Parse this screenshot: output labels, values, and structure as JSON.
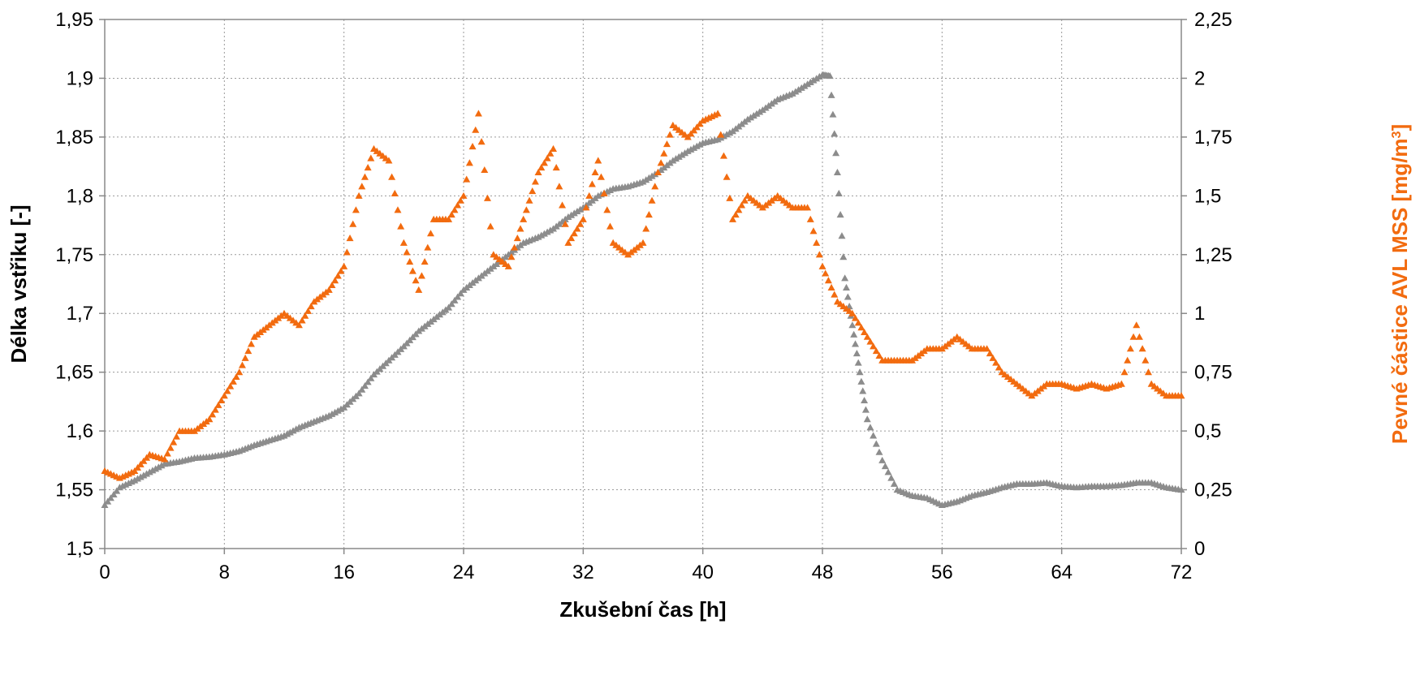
{
  "chart_data": {
    "type": "scatter",
    "xlabel": "Zkušební čas [h]",
    "ylabel_left": "Délka vstřiku [-]",
    "ylabel_right_main": "Pevné částice AVL MSS [mg/m",
    "ylabel_right_sup": "3",
    "ylabel_right_end": "]",
    "xlim": [
      0,
      72
    ],
    "ylim_left": [
      1.5,
      1.95
    ],
    "ylim_right": [
      0,
      2.25
    ],
    "x_ticks": [
      0,
      8,
      16,
      24,
      32,
      40,
      48,
      56,
      64,
      72
    ],
    "x_tick_labels": [
      "0",
      "8",
      "16",
      "24",
      "32",
      "40",
      "48",
      "56",
      "64",
      "72"
    ],
    "y_left_ticks": [
      1.5,
      1.55,
      1.6,
      1.65,
      1.7,
      1.75,
      1.8,
      1.85,
      1.9,
      1.95
    ],
    "y_left_tick_labels": [
      "1,5",
      "1,55",
      "1,6",
      "1,65",
      "1,7",
      "1,75",
      "1,8",
      "1,85",
      "1,9",
      "1,95"
    ],
    "y_right_ticks": [
      0,
      0.25,
      0.5,
      0.75,
      1,
      1.25,
      1.5,
      1.75,
      2,
      2.25
    ],
    "y_right_tick_labels": [
      "0",
      "0,25",
      "0,5",
      "0,75",
      "1",
      "1,25",
      "1,5",
      "1,75",
      "2",
      "2,25"
    ],
    "grid": true,
    "colors": {
      "gray": "#8C8C8C",
      "orange": "#F26B0F"
    },
    "series": [
      {
        "axis": "left",
        "color": "#8C8C8C",
        "marker": "triangle",
        "x": [
          0,
          1,
          2,
          3,
          4,
          5,
          6,
          7,
          8,
          9,
          10,
          11,
          12,
          13,
          14,
          15,
          16,
          17,
          18,
          19,
          20,
          21,
          22,
          23,
          24,
          25,
          26,
          27,
          28,
          29,
          30,
          31,
          32,
          33,
          34,
          35,
          36,
          37,
          38,
          39,
          40,
          41,
          42,
          43,
          44,
          45,
          46,
          47,
          48,
          48.5,
          49,
          49.5,
          50,
          50.5,
          51,
          52,
          53,
          54,
          55,
          56,
          57,
          58,
          59,
          60,
          61,
          62,
          63,
          64,
          65,
          66,
          67,
          68,
          69,
          70,
          71,
          72
        ],
        "y": [
          1.537,
          1.552,
          1.558,
          1.565,
          1.572,
          1.574,
          1.577,
          1.578,
          1.58,
          1.583,
          1.588,
          1.592,
          1.596,
          1.603,
          1.608,
          1.613,
          1.62,
          1.632,
          1.648,
          1.66,
          1.672,
          1.685,
          1.695,
          1.705,
          1.72,
          1.73,
          1.74,
          1.75,
          1.76,
          1.765,
          1.772,
          1.782,
          1.79,
          1.8,
          1.806,
          1.808,
          1.812,
          1.82,
          1.83,
          1.838,
          1.845,
          1.848,
          1.855,
          1.865,
          1.873,
          1.882,
          1.887,
          1.895,
          1.903,
          1.902,
          1.82,
          1.73,
          1.69,
          1.65,
          1.61,
          1.575,
          1.55,
          1.545,
          1.543,
          1.537,
          1.54,
          1.545,
          1.548,
          1.552,
          1.555,
          1.555,
          1.556,
          1.553,
          1.552,
          1.553,
          1.553,
          1.554,
          1.556,
          1.556,
          1.552,
          1.55
        ]
      },
      {
        "axis": "right",
        "color": "#F26B0F",
        "marker": "triangle",
        "x": [
          0,
          1,
          2,
          3,
          4,
          5,
          6,
          7,
          8,
          9,
          10,
          11,
          12,
          13,
          14,
          15,
          16,
          17,
          18,
          19,
          20,
          21,
          22,
          23,
          24,
          25,
          26,
          27,
          28,
          29,
          30,
          31,
          32,
          33,
          34,
          35,
          36,
          37,
          38,
          39,
          40,
          41,
          42,
          43,
          44,
          45,
          46,
          47,
          48,
          49,
          50,
          51,
          52,
          53,
          54,
          55,
          56,
          57,
          58,
          59,
          60,
          61,
          62,
          63,
          64,
          65,
          66,
          67,
          68,
          69,
          70,
          71,
          72
        ],
        "y": [
          0.33,
          0.3,
          0.33,
          0.4,
          0.38,
          0.5,
          0.5,
          0.55,
          0.65,
          0.75,
          0.9,
          0.95,
          1.0,
          0.95,
          1.05,
          1.1,
          1.2,
          1.5,
          1.7,
          1.65,
          1.3,
          1.1,
          1.4,
          1.4,
          1.5,
          1.85,
          1.25,
          1.2,
          1.4,
          1.6,
          1.7,
          1.3,
          1.4,
          1.65,
          1.3,
          1.25,
          1.3,
          1.6,
          1.8,
          1.75,
          1.82,
          1.85,
          1.4,
          1.5,
          1.45,
          1.5,
          1.45,
          1.45,
          1.2,
          1.05,
          1.0,
          0.9,
          0.8,
          0.8,
          0.8,
          0.85,
          0.85,
          0.9,
          0.85,
          0.85,
          0.75,
          0.7,
          0.65,
          0.7,
          0.7,
          0.68,
          0.7,
          0.68,
          0.7,
          0.95,
          0.7,
          0.65,
          0.65
        ]
      }
    ]
  }
}
